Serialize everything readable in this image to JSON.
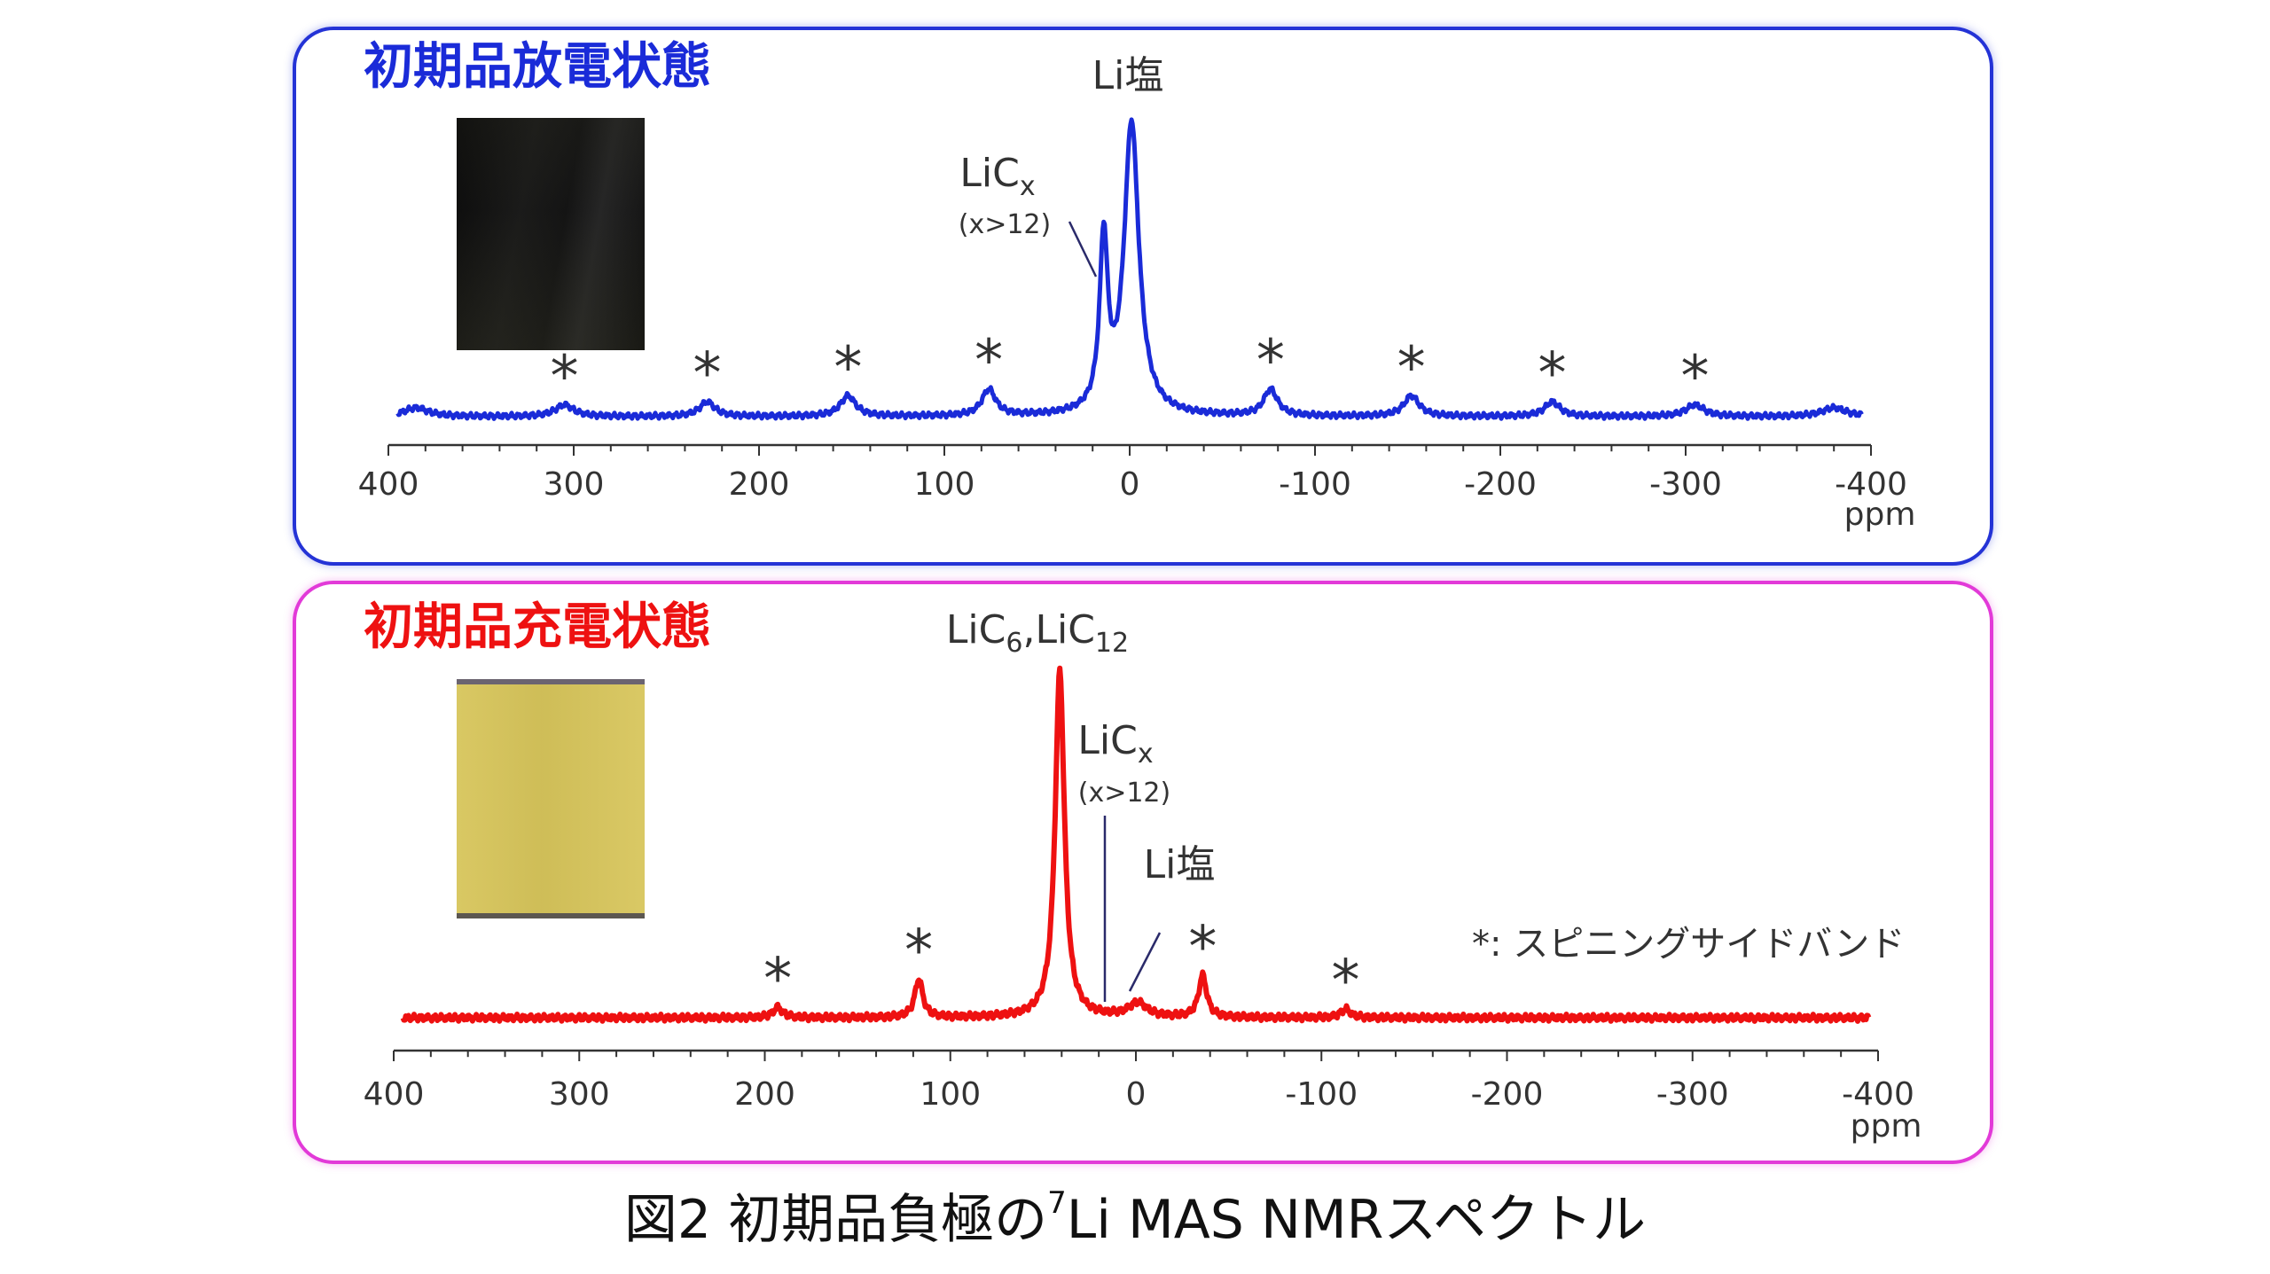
{
  "colors": {
    "discharge": "#1a2bd8",
    "charge": "#ee1111",
    "panel_top_border": "#2433d6",
    "panel_bottom_border": "#e23ad8"
  },
  "chart_data": [
    {
      "type": "line",
      "title": "初期品放電状態",
      "xlabel": "ppm",
      "xlim": [
        400,
        -400
      ],
      "xticks": [
        "400",
        "300",
        "200",
        "100",
        "0",
        "-100",
        "-200",
        "-300",
        "-400"
      ],
      "grid": false,
      "series_color": "#1a2bd8",
      "peaks": [
        {
          "ppm": 385,
          "height": 0.03,
          "width": 8
        },
        {
          "ppm": 305,
          "height": 0.04,
          "width": 6
        },
        {
          "ppm": 228,
          "height": 0.05,
          "width": 5
        },
        {
          "ppm": 152,
          "height": 0.07,
          "width": 5
        },
        {
          "ppm": 76,
          "height": 0.09,
          "width": 4.5
        },
        {
          "ppm": 14,
          "height": 0.58,
          "width": 2.6
        },
        {
          "ppm": -1,
          "height": 1.0,
          "width": 4.8
        },
        {
          "ppm": -76,
          "height": 0.09,
          "width": 4.5
        },
        {
          "ppm": -152,
          "height": 0.07,
          "width": 5
        },
        {
          "ppm": -228,
          "height": 0.05,
          "width": 5
        },
        {
          "ppm": -305,
          "height": 0.04,
          "width": 6
        },
        {
          "ppm": -380,
          "height": 0.03,
          "width": 8
        }
      ],
      "annotations": {
        "li_salt": "Li塩",
        "licx": {
          "main": "LiC",
          "sub": "x",
          "note": "(x>12)"
        },
        "sidebands": "*",
        "sideband_ppm": [
          305,
          228,
          152,
          76,
          -76,
          -152,
          -228,
          -305
        ]
      }
    },
    {
      "type": "line",
      "title": "初期品充電状態",
      "xlabel": "ppm",
      "xlim": [
        400,
        -400
      ],
      "xticks": [
        "400",
        "300",
        "200",
        "100",
        "0",
        "-100",
        "-200",
        "-300",
        "-400"
      ],
      "grid": false,
      "series_color": "#ee1111",
      "peaks": [
        {
          "ppm": 193,
          "height": 0.03,
          "width": 3
        },
        {
          "ppm": 117,
          "height": 0.11,
          "width": 2.6
        },
        {
          "ppm": 41,
          "height": 1.0,
          "width": 3.0
        },
        {
          "ppm": -1,
          "height": 0.04,
          "width": 6
        },
        {
          "ppm": -36,
          "height": 0.12,
          "width": 2.6
        },
        {
          "ppm": -113,
          "height": 0.025,
          "width": 3
        }
      ],
      "annotations": {
        "lic6_lic12": {
          "a_main": "LiC",
          "a_sub": "6",
          "sep": ",",
          "b_main": "LiC",
          "b_sub": "12"
        },
        "licx": {
          "main": "LiC",
          "sub": "x",
          "note": "(x>12)"
        },
        "li_salt": "Li塩",
        "sidebands": "*",
        "sideband_ppm": [
          193,
          117,
          -36,
          -113
        ],
        "legend": "*: スピニングサイドバンド"
      }
    }
  ],
  "caption": {
    "prefix": "図2  初期品負極の",
    "sup": "7",
    "suffix": "Li MAS NMRスペクトル"
  }
}
